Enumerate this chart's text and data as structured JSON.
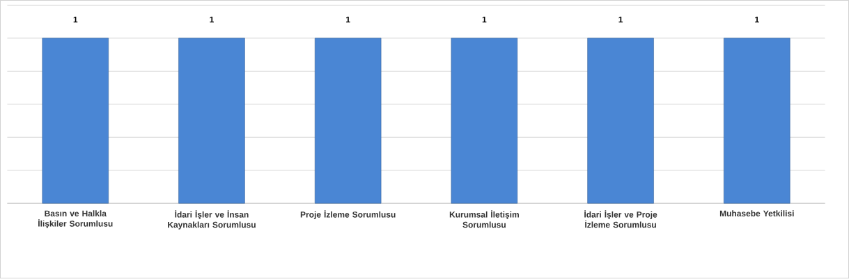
{
  "chart_data": {
    "type": "bar",
    "categories": [
      "Basın ve Halkla İlişkiler Sorumlusu",
      "İdari İşler ve İnsan Kaynakları Sorumlusu",
      "Proje İzleme Sorumlusu",
      "Kurumsal İletişim Sorumlusu",
      "İdari İşler ve Proje İzleme Sorumlusu",
      "Muhasebe Yetkilisi"
    ],
    "values": [
      1,
      1,
      1,
      1,
      1,
      1
    ],
    "color": "#4a86d4",
    "tick_labels": "x",
    "grid": "y",
    "data_labels": true
  }
}
